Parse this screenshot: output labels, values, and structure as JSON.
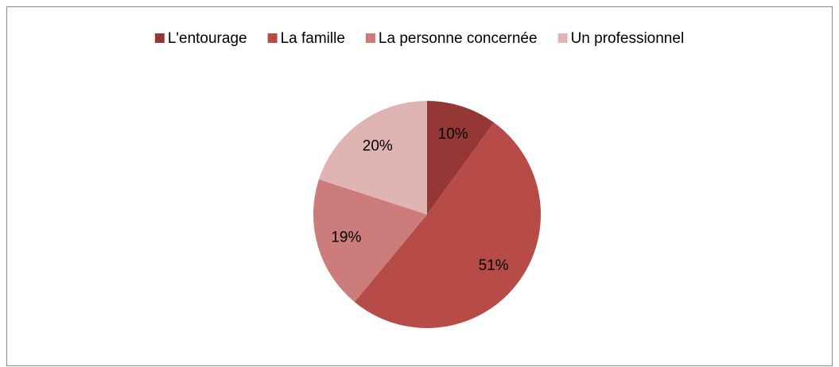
{
  "chart_data": {
    "type": "pie",
    "categories": [
      "L'entourage",
      "La famille",
      "La personne concernée",
      "Un professionnel"
    ],
    "values": [
      10,
      51,
      19,
      20
    ],
    "value_labels": [
      "10%",
      "51%",
      "19%",
      "20%"
    ],
    "colors": [
      "#953735",
      "#b64b48",
      "#cc7c7a",
      "#e0b4b3"
    ],
    "legend": "top"
  }
}
